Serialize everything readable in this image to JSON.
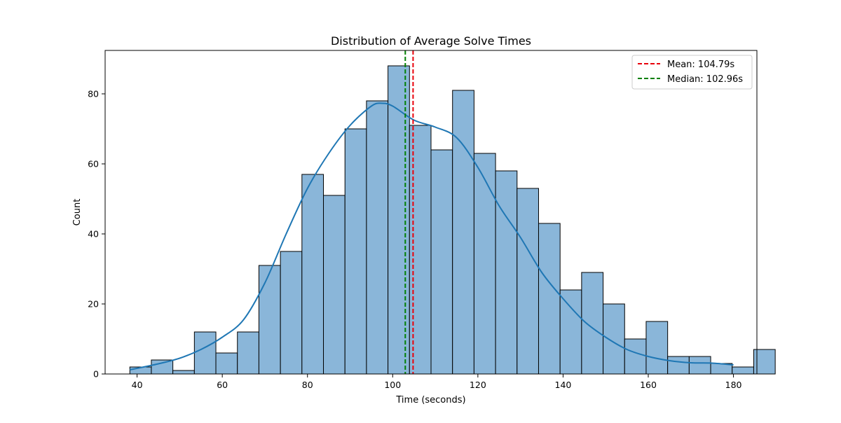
{
  "chart_data": {
    "type": "bar",
    "subtype": "histogram with kde",
    "title": "Distribution of Average Solve Times",
    "xlabel": "Time (seconds)",
    "ylabel": "Count",
    "xlim": [
      32.5,
      185.5
    ],
    "ylim": [
      0,
      92.4
    ],
    "xticks": [
      40,
      60,
      80,
      100,
      120,
      140,
      160,
      180
    ],
    "yticks": [
      0,
      20,
      40,
      60,
      80
    ],
    "bin_start": 38.3,
    "bin_width": 5.05,
    "values": [
      2,
      4,
      1,
      12,
      6,
      12,
      31,
      35,
      57,
      51,
      70,
      78,
      88,
      71,
      64,
      81,
      63,
      58,
      53,
      43,
      24,
      29,
      20,
      10,
      15,
      5,
      5,
      3,
      2,
      7
    ],
    "kde": {
      "x": [
        38.3,
        45,
        50,
        55,
        60,
        65,
        70,
        75,
        80,
        85,
        90,
        95,
        97.5,
        100,
        105,
        110,
        115,
        120,
        125,
        130,
        135,
        140,
        145,
        150,
        155,
        160,
        165,
        170,
        175,
        180
      ],
      "y": [
        1.2,
        2.9,
        4.5,
        7,
        10.5,
        15.5,
        26,
        40,
        53,
        63,
        71,
        76.5,
        77.3,
        76.5,
        72.5,
        70.5,
        67.5,
        59,
        48,
        39,
        29,
        21.5,
        15,
        10.5,
        7,
        5,
        3.8,
        3.2,
        3.1,
        2.6
      ]
    },
    "reference_lines": [
      {
        "name": "Mean: 104.79s",
        "x": 104.79,
        "color": "#e8000b",
        "style": "dashed"
      },
      {
        "name": "Median: 102.96s",
        "x": 102.96,
        "color": "#008000",
        "style": "dashed"
      }
    ],
    "legend_position": "top-right",
    "grid": false,
    "colors": {
      "bar_fill": "#8ab6d9",
      "bar_edge": "#000000",
      "kde_line": "#1f77b4"
    }
  }
}
